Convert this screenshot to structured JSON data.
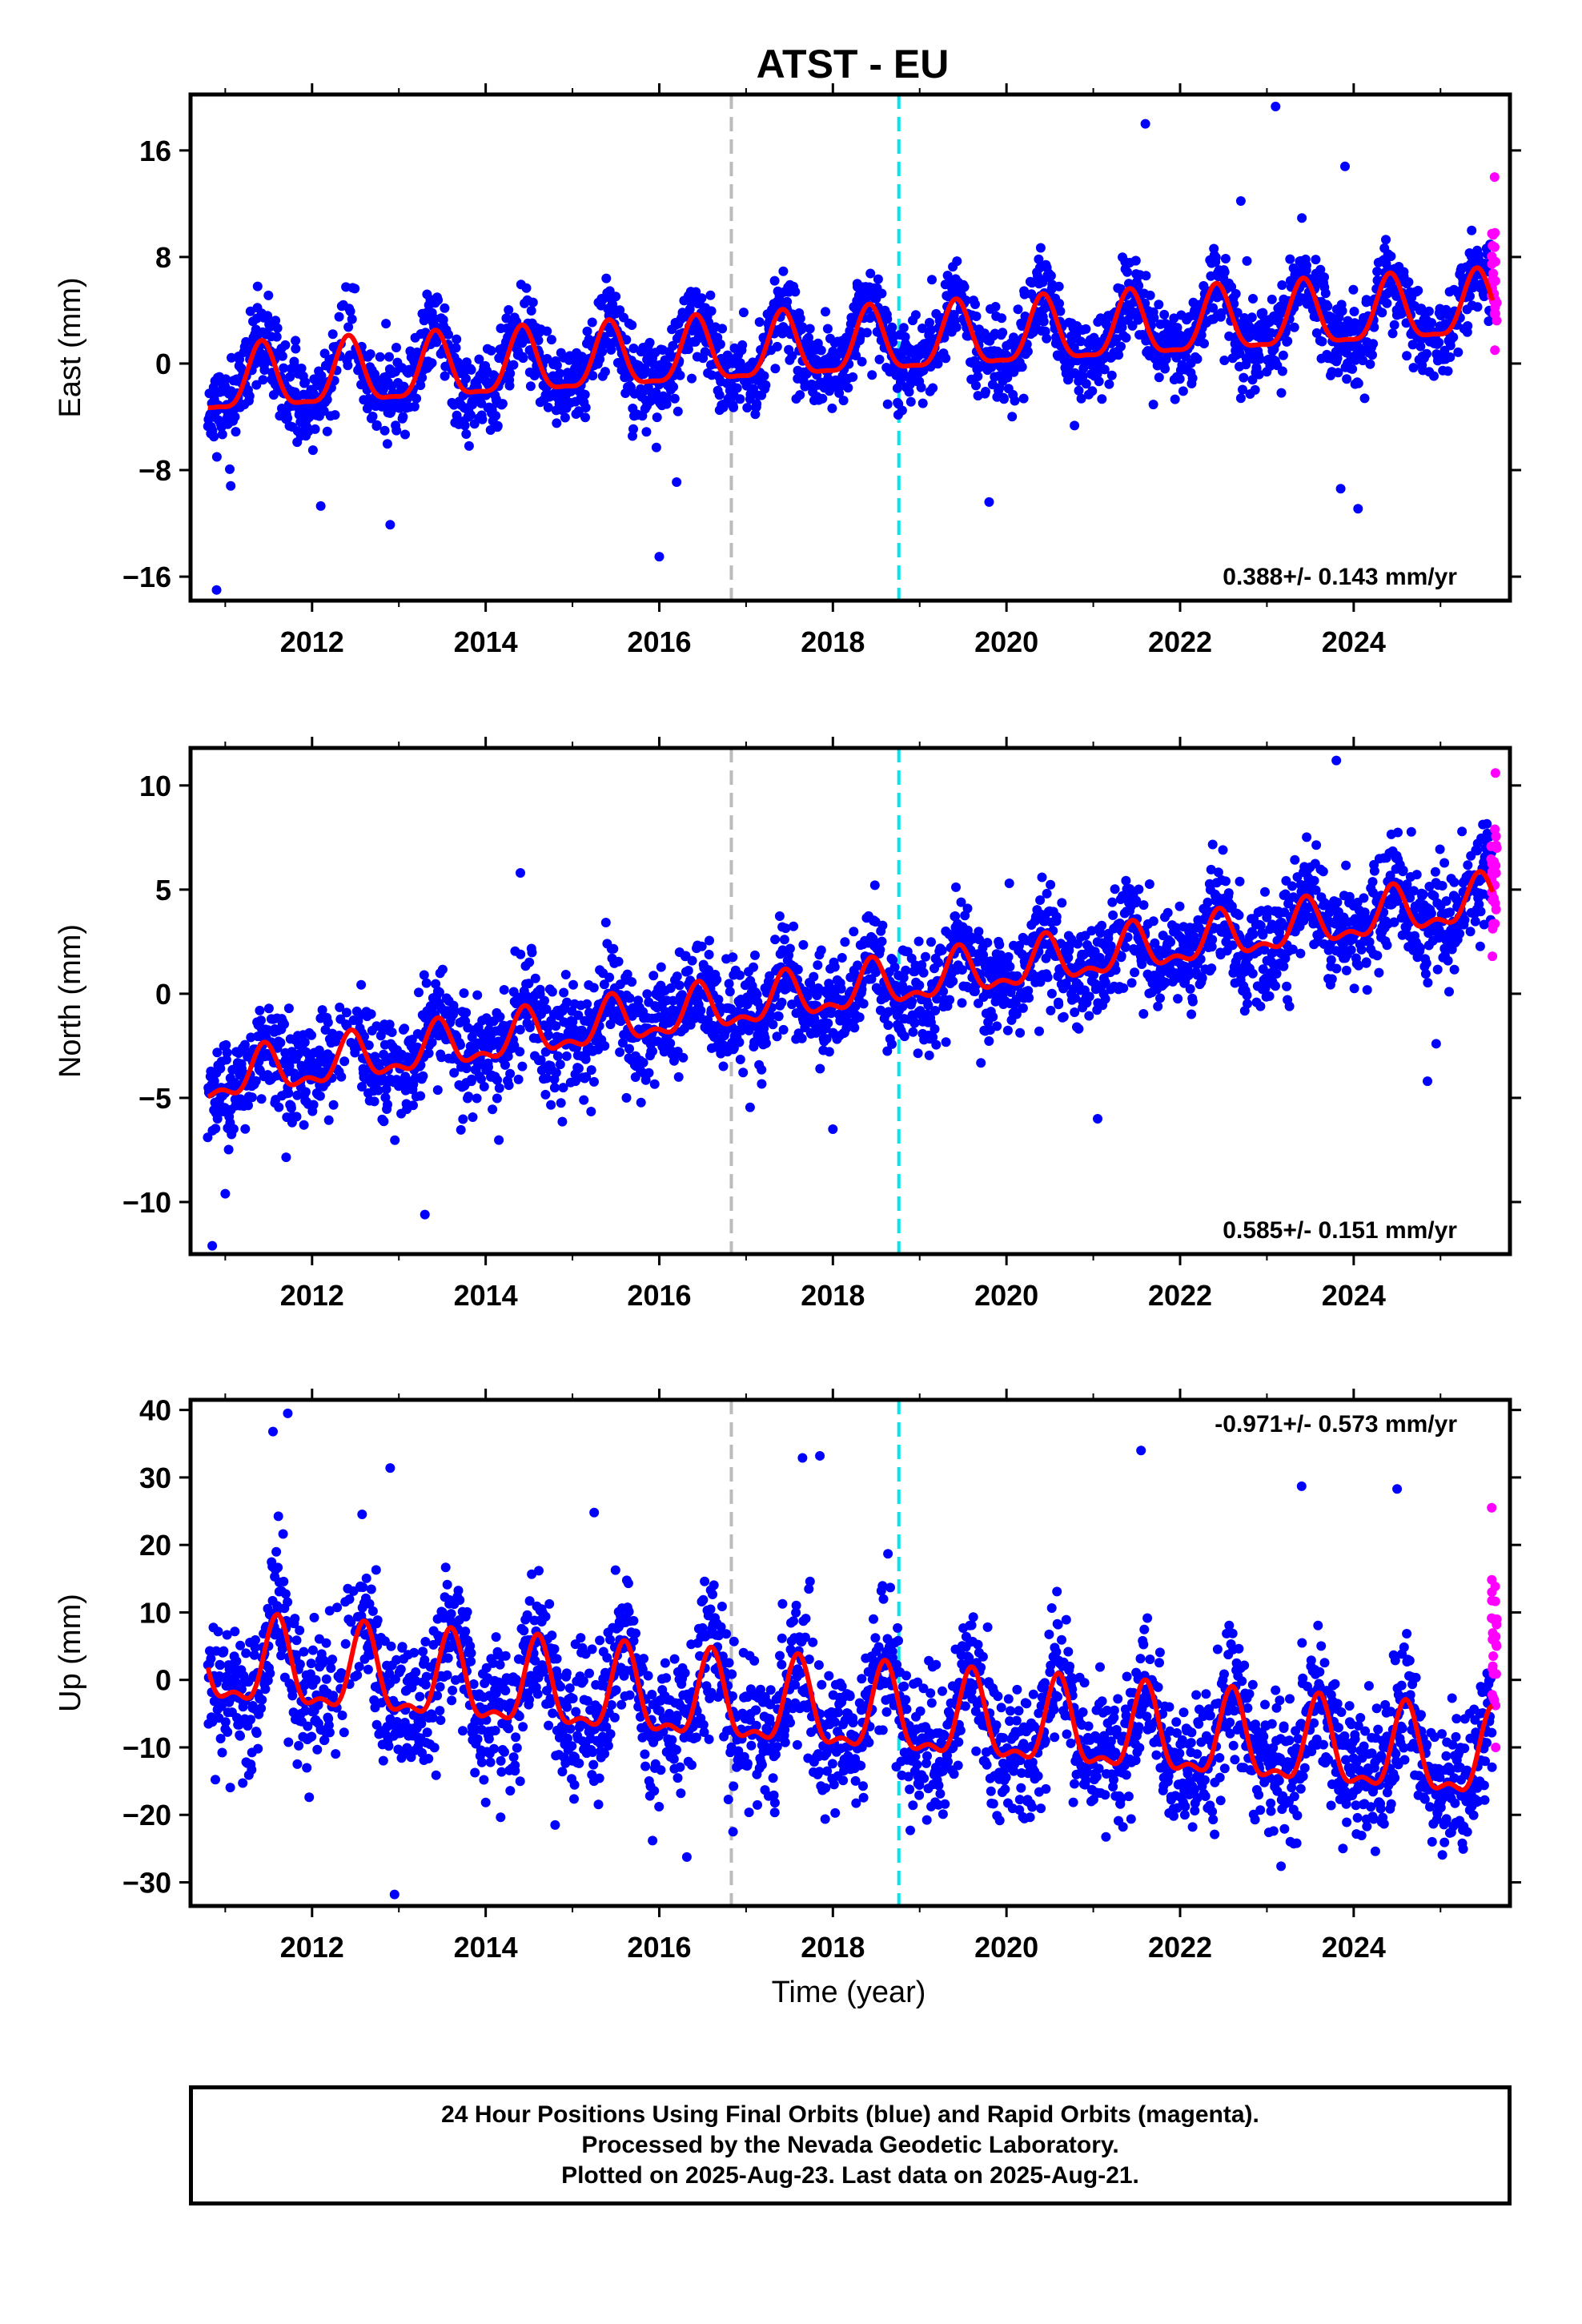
{
  "title": "ATST - EU",
  "xlabel": "Time (year)",
  "x_ticks": [
    2012,
    2014,
    2016,
    2018,
    2020,
    2022,
    2024
  ],
  "xlim": [
    2010.6,
    2025.8
  ],
  "footer": {
    "line1": "24 Hour Positions Using Final Orbits (blue) and Rapid Orbits (magenta).",
    "line2": "Processed by the Nevada Geodetic Laboratory.",
    "line3": "Plotted on 2025-Aug-23. Last data on 2025-Aug-21."
  },
  "colors": {
    "final_orbits": "#0000ff",
    "rapid_orbits": "#ff00ff",
    "model_fit": "#ff0000",
    "equipment_change": "#bbbbbb",
    "other_event": "#00e5ee"
  },
  "event_lines": [
    {
      "x": 2016.83,
      "color": "#bbbbbb"
    },
    {
      "x": 2018.76,
      "color": "#00e5ee"
    }
  ],
  "chart_data": [
    {
      "type": "scatter",
      "panel": "east",
      "ylabel": "East (mm)",
      "ylim": [
        -17.8,
        20.2
      ],
      "y_ticks": [
        -16,
        -8,
        0,
        8,
        16
      ],
      "y_tick_labels": [
        "−16",
        "−8",
        "0",
        "8",
        "16"
      ],
      "rate_text": "0.388+/- 0.143 mm/yr",
      "rate_position": "bottom-right",
      "grid": false,
      "model": {
        "start": 2010.8,
        "end": 2025.6,
        "offset": -1.6,
        "trend": 0.39,
        "annual_amp": 2.4,
        "annual_phase_peak": 0.42,
        "semi_amp": 0.7
      },
      "scatter": {
        "std": 1.6,
        "n": 2600,
        "seed": 11
      },
      "rapid_range": [
        1.0,
        14.0
      ],
      "outliers": [
        {
          "x": 2010.9,
          "y": -17.0
        },
        {
          "x": 2016.0,
          "y": -14.5
        },
        {
          "x": 2012.1,
          "y": -10.7
        },
        {
          "x": 2012.9,
          "y": -12.1
        },
        {
          "x": 2023.1,
          "y": 19.3
        },
        {
          "x": 2021.6,
          "y": 18.0
        },
        {
          "x": 2023.9,
          "y": 14.8
        },
        {
          "x": 2023.85,
          "y": -9.4
        },
        {
          "x": 2024.05,
          "y": -10.9
        },
        {
          "x": 2019.8,
          "y": -10.4
        },
        {
          "x": 2022.7,
          "y": 12.2
        },
        {
          "x": 2016.2,
          "y": -8.9
        }
      ]
    },
    {
      "type": "scatter",
      "panel": "north",
      "ylabel": "North (mm)",
      "ylim": [
        -12.5,
        11.8
      ],
      "y_ticks": [
        -10,
        -5,
        0,
        5,
        10
      ],
      "y_tick_labels": [
        "−10",
        "−5",
        "0",
        "5",
        "10"
      ],
      "rate_text": "0.585+/- 0.151 mm/yr",
      "rate_position": "bottom-right",
      "grid": false,
      "model": {
        "start": 2010.8,
        "end": 2025.6,
        "offset": -4.2,
        "trend": 0.585,
        "annual_amp": 1.0,
        "annual_phase_peak": 0.45,
        "semi_amp": 0.5
      },
      "scatter": {
        "std": 1.25,
        "n": 2600,
        "seed": 23
      },
      "rapid_range": [
        1.8,
        10.6
      ],
      "outliers": [
        {
          "x": 2010.85,
          "y": -12.1
        },
        {
          "x": 2013.3,
          "y": -10.6
        },
        {
          "x": 2011.0,
          "y": -9.6
        },
        {
          "x": 2023.8,
          "y": 11.2
        },
        {
          "x": 2024.85,
          "y": -4.2
        },
        {
          "x": 2024.95,
          "y": -2.4
        },
        {
          "x": 2021.05,
          "y": -6.0
        },
        {
          "x": 2018.0,
          "y": -6.5
        },
        {
          "x": 2014.4,
          "y": 5.8
        }
      ]
    },
    {
      "type": "scatter",
      "panel": "up",
      "ylabel": "Up (mm)",
      "ylim": [
        -33.5,
        41.5
      ],
      "y_ticks": [
        -30,
        -20,
        -10,
        0,
        10,
        20,
        30,
        40
      ],
      "y_tick_labels": [
        "−30",
        "−20",
        "−10",
        "0",
        "10",
        "20",
        "30",
        "40"
      ],
      "rate_text": "-0.971+/- 0.573 mm/yr",
      "rate_position": "top-right",
      "grid": false,
      "model": {
        "start": 2010.8,
        "end": 2025.6,
        "offset": 2.0,
        "trend": -0.97,
        "annual_amp": 6.0,
        "annual_phase_peak": 0.6,
        "semi_amp": 2.5
      },
      "scatter": {
        "std": 5.2,
        "n": 2600,
        "seed": 37
      },
      "rapid_range": [
        -10.0,
        25.5
      ],
      "outliers": [
        {
          "x": 2011.55,
          "y": 36.8
        },
        {
          "x": 2011.72,
          "y": 39.5
        },
        {
          "x": 2012.9,
          "y": 31.4
        },
        {
          "x": 2017.85,
          "y": 33.2
        },
        {
          "x": 2017.65,
          "y": 32.9
        },
        {
          "x": 2021.55,
          "y": 34.0
        },
        {
          "x": 2012.95,
          "y": -31.8
        },
        {
          "x": 2016.85,
          "y": -22.5
        },
        {
          "x": 2014.8,
          "y": -21.5
        },
        {
          "x": 2023.4,
          "y": 28.7
        },
        {
          "x": 2024.5,
          "y": 28.3
        },
        {
          "x": 2015.25,
          "y": 24.8
        }
      ]
    }
  ]
}
